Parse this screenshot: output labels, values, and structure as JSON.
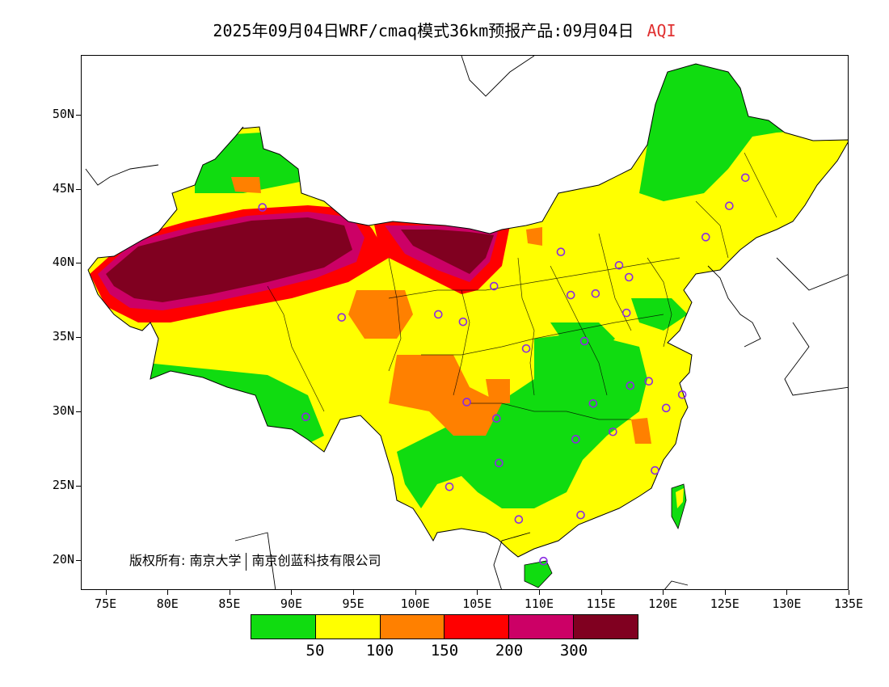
{
  "title": {
    "main": "2025年09月04日WRF/cmaq模式36km预报产品:09月04日",
    "variable": "AQI"
  },
  "axes": {
    "y_ticks": [
      {
        "lat": 50,
        "label": "50N"
      },
      {
        "lat": 45,
        "label": "45N"
      },
      {
        "lat": 40,
        "label": "40N"
      },
      {
        "lat": 35,
        "label": "35N"
      },
      {
        "lat": 30,
        "label": "30N"
      },
      {
        "lat": 25,
        "label": "25N"
      },
      {
        "lat": 20,
        "label": "20N"
      }
    ],
    "x_ticks": [
      {
        "lon": 75,
        "label": "75E"
      },
      {
        "lon": 80,
        "label": "80E"
      },
      {
        "lon": 85,
        "label": "85E"
      },
      {
        "lon": 90,
        "label": "90E"
      },
      {
        "lon": 95,
        "label": "95E"
      },
      {
        "lon": 100,
        "label": "100E"
      },
      {
        "lon": 105,
        "label": "105E"
      },
      {
        "lon": 110,
        "label": "110E"
      },
      {
        "lon": 115,
        "label": "115E"
      },
      {
        "lon": 120,
        "label": "120E"
      },
      {
        "lon": 125,
        "label": "125E"
      },
      {
        "lon": 130,
        "label": "130E"
      },
      {
        "lon": 135,
        "label": "135E"
      }
    ],
    "lon_range": [
      73,
      135
    ],
    "lat_range": [
      18,
      54
    ]
  },
  "legend": {
    "colors": [
      "#10dc10",
      "#ffff00",
      "#ff8000",
      "#ff0000",
      "#cc0066",
      "#800020"
    ],
    "labels": [
      "50",
      "100",
      "150",
      "200",
      "300"
    ]
  },
  "copyright": {
    "left": "版权所有: 南京大学",
    "right": "南京创蓝科技有限公司"
  },
  "stations": [
    [
      87.6,
      43.8
    ],
    [
      126.6,
      45.8
    ],
    [
      125.3,
      43.9
    ],
    [
      123.4,
      41.8
    ],
    [
      116.4,
      39.9
    ],
    [
      117.2,
      39.1
    ],
    [
      114.5,
      38.0
    ],
    [
      112.5,
      37.9
    ],
    [
      111.7,
      40.8
    ],
    [
      106.3,
      38.5
    ],
    [
      103.8,
      36.1
    ],
    [
      101.8,
      36.6
    ],
    [
      91.1,
      29.7
    ],
    [
      117.0,
      36.7
    ],
    [
      113.6,
      34.8
    ],
    [
      108.9,
      34.3
    ],
    [
      117.3,
      31.8
    ],
    [
      118.8,
      32.1
    ],
    [
      120.2,
      30.3
    ],
    [
      121.5,
      31.2
    ],
    [
      114.3,
      30.6
    ],
    [
      112.9,
      28.2
    ],
    [
      115.9,
      28.7
    ],
    [
      119.3,
      26.1
    ],
    [
      113.3,
      23.1
    ],
    [
      108.3,
      22.8
    ],
    [
      106.7,
      26.6
    ],
    [
      102.7,
      25.0
    ],
    [
      104.1,
      30.7
    ],
    [
      106.5,
      29.6
    ],
    [
      110.3,
      20.0
    ],
    [
      94.0,
      36.4
    ]
  ]
}
